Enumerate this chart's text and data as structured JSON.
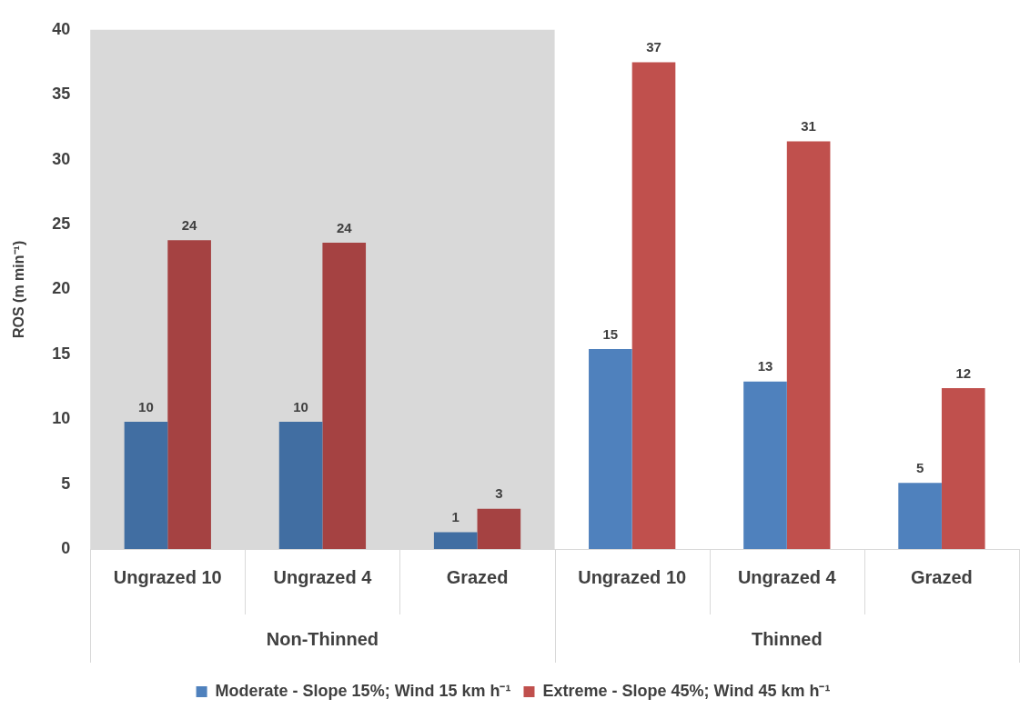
{
  "chart_data": {
    "type": "bar",
    "ylabel": "ROS (m min⁻¹)",
    "annotations": [
      "Non-Thinned",
      "Thinned"
    ],
    "categories": [
      "Ungrazed 10",
      "Ungrazed 4",
      "Grazed",
      "Ungrazed 10",
      "Ungrazed 4",
      "Grazed"
    ],
    "series": [
      {
        "name": "Moderate - Slope 15%; Wind 15 km h⁻¹",
        "color": "#4f81bd",
        "colors": [
          "#416ea2",
          "#416ea2",
          "#416ea2",
          "#4f81bd",
          "#4f81bd",
          "#4f81bd"
        ],
        "values": [
          9.8,
          9.8,
          1.3,
          15.4,
          12.9,
          5.1
        ],
        "value_labels": [
          "10",
          "10",
          "1",
          "15",
          "13",
          "5"
        ]
      },
      {
        "name": "Extreme - Slope 45%; Wind 45 km h⁻¹",
        "color": "#c0504d",
        "colors": [
          "#a54242",
          "#a54242",
          "#a54242",
          "#c0504d",
          "#c0504d",
          "#c0504d"
        ],
        "values": [
          23.8,
          23.6,
          3.1,
          37.5,
          31.4,
          12.4
        ],
        "value_labels": [
          "24",
          "24",
          "3",
          "37",
          "31",
          "12"
        ]
      }
    ],
    "bands": [
      {
        "axis": "x",
        "from": "Ungrazed 10",
        "to": "Grazed",
        "color": "#d9d9d9"
      }
    ],
    "ylim": [
      0,
      40
    ],
    "yticks": [
      0,
      5,
      10,
      15,
      20,
      25,
      30,
      35,
      40
    ],
    "grid": false,
    "legend": "bottom"
  }
}
